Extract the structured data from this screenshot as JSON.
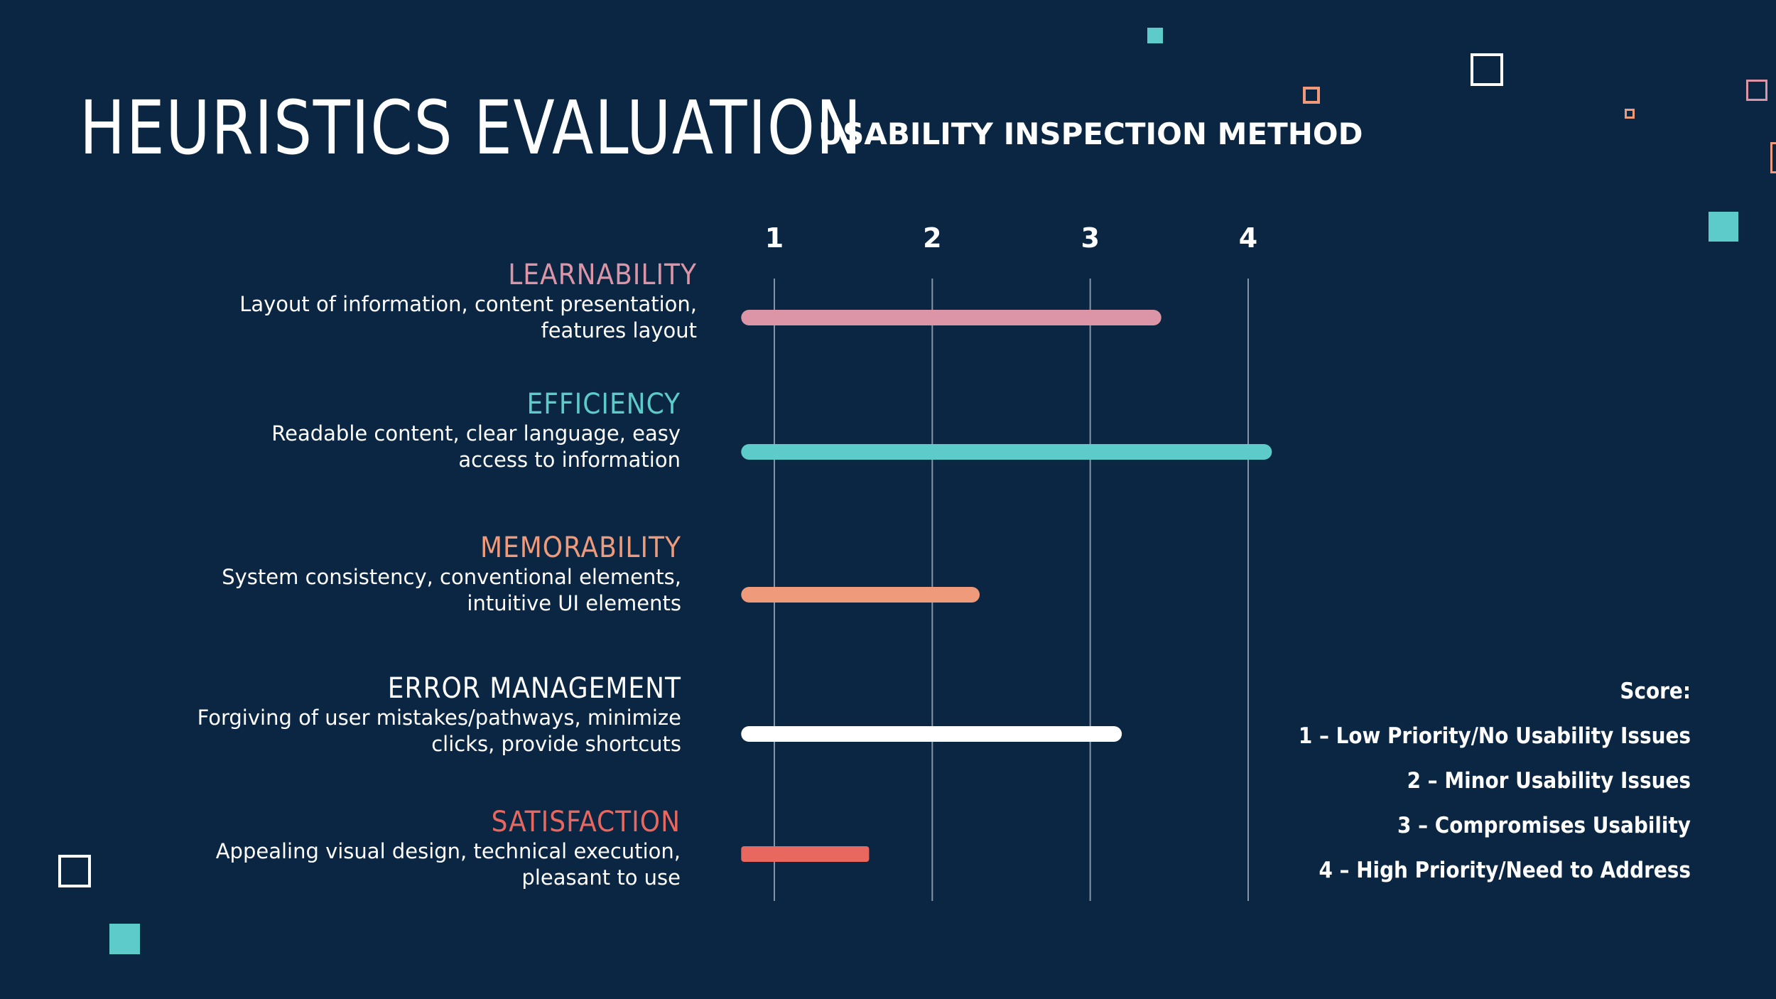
{
  "slide": {
    "title": "HEURISTICS EVALUATION",
    "subtitle": "USABILITY INSPECTION METHOD"
  },
  "categories": [
    {
      "title": "LEARNABILITY",
      "desc": "Layout of information, content presentation,\nfeatures layout",
      "color": "#db95a6"
    },
    {
      "title": "EFFICIENCY",
      "desc": "Readable content, clear language, easy\naccess to information",
      "color": "#5ccbc9"
    },
    {
      "title": "MEMORABILITY",
      "desc": "System consistency, conventional elements,\nintuitive UI elements",
      "color": "#ef9a7a"
    },
    {
      "title": "ERROR MANAGEMENT",
      "desc": "Forgiving of user mistakes/pathways, minimize\nclicks, provide shortcuts",
      "color": "#ffffff"
    },
    {
      "title": "SATISFACTION",
      "desc": "Appealing visual design, technical execution,\npleasant to use",
      "color": "#e8675e"
    }
  ],
  "legend": {
    "heading": "Score:",
    "items": [
      "1 – Low Priority/No Usability Issues",
      "2 – Minor Usability Issues",
      "3 – Compromises Usability",
      "4 – High Priority/Need to Address"
    ]
  },
  "chart_data": {
    "type": "bar",
    "orientation": "horizontal",
    "categories": [
      "LEARNABILITY",
      "EFFICIENCY",
      "MEMORABILITY",
      "ERROR MANAGEMENT",
      "SATISFACTION"
    ],
    "values": [
      3.45,
      4.15,
      2.3,
      3.2,
      1.6
    ],
    "x_ticks": [
      1,
      2,
      3,
      4
    ],
    "xlim": [
      0.79,
      4.15
    ],
    "grid": true,
    "legend_position": "bottom-right",
    "colors": [
      "#db95a6",
      "#5ccbc9",
      "#ef9a7a",
      "#ffffff",
      "#e8675e"
    ]
  }
}
